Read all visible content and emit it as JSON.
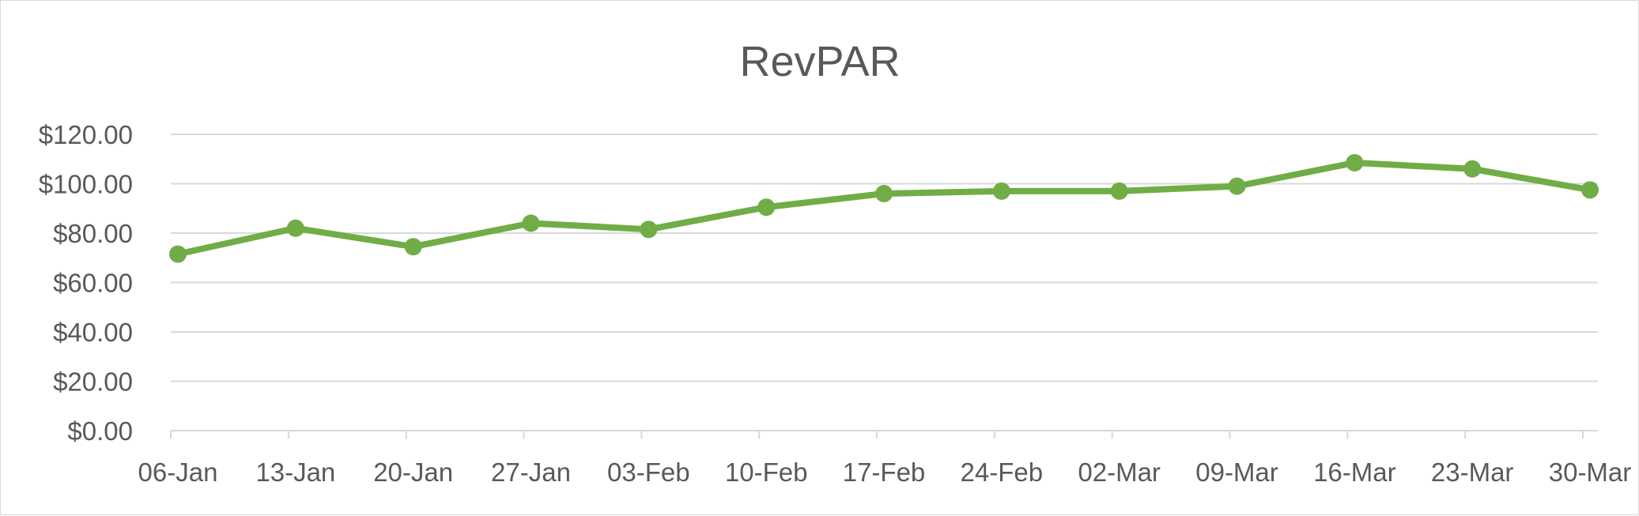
{
  "chart_data": {
    "type": "line",
    "title": "RevPAR",
    "categories": [
      "06-Jan",
      "13-Jan",
      "20-Jan",
      "27-Jan",
      "03-Feb",
      "10-Feb",
      "17-Feb",
      "24-Feb",
      "02-Mar",
      "09-Mar",
      "16-Mar",
      "23-Mar",
      "30-Mar"
    ],
    "series": [
      {
        "values": [
          71.5,
          82.0,
          74.5,
          84.0,
          81.5,
          90.5,
          96.0,
          97.0,
          97.0,
          99.0,
          108.5,
          106.0,
          97.5
        ]
      }
    ],
    "ylim": [
      0,
      120
    ],
    "yticks": [
      0,
      20,
      40,
      60,
      80,
      100,
      120
    ],
    "ytick_labels": [
      "$0.00",
      "$20.00",
      "$40.00",
      "$60.00",
      "$80.00",
      "$100.00",
      "$120.00"
    ],
    "grid": true,
    "legend": "none",
    "colors": {
      "line": "#70ad47",
      "grid": "#d9d9d9",
      "text": "#595959"
    }
  }
}
